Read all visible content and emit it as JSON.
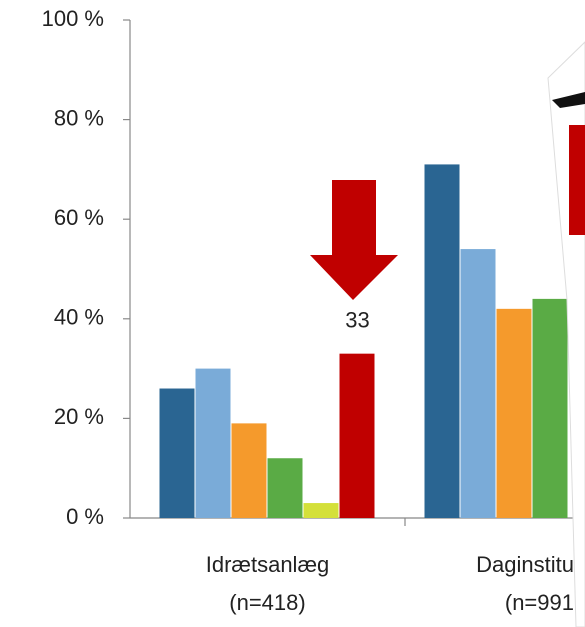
{
  "chart_data": {
    "type": "bar",
    "categories": [
      "Idrætsanlæg",
      "Daginstitu"
    ],
    "category_notes": [
      "(n=418)",
      "(n=991"
    ],
    "series": [
      {
        "color": "#2a6592",
        "values": [
          26,
          71
        ]
      },
      {
        "color": "#7aabd8",
        "values": [
          30,
          54
        ]
      },
      {
        "color": "#f59a2c",
        "values": [
          19,
          42
        ]
      },
      {
        "color": "#5aab45",
        "values": [
          12,
          44
        ]
      },
      {
        "color": "#d4e03a",
        "values": [
          3,
          null
        ]
      },
      {
        "color": "#c00000",
        "values": [
          33,
          null
        ],
        "data_labels": true
      }
    ],
    "ylim": [
      0,
      100
    ],
    "yticks": [
      {
        "value": 0,
        "label": "0 %"
      },
      {
        "value": 20,
        "label": "20 %"
      },
      {
        "value": 40,
        "label": "40 %"
      },
      {
        "value": 60,
        "label": "60 %"
      },
      {
        "value": 80,
        "label": "80 %"
      },
      {
        "value": 100,
        "label": "100 %"
      }
    ],
    "grid": false
  }
}
